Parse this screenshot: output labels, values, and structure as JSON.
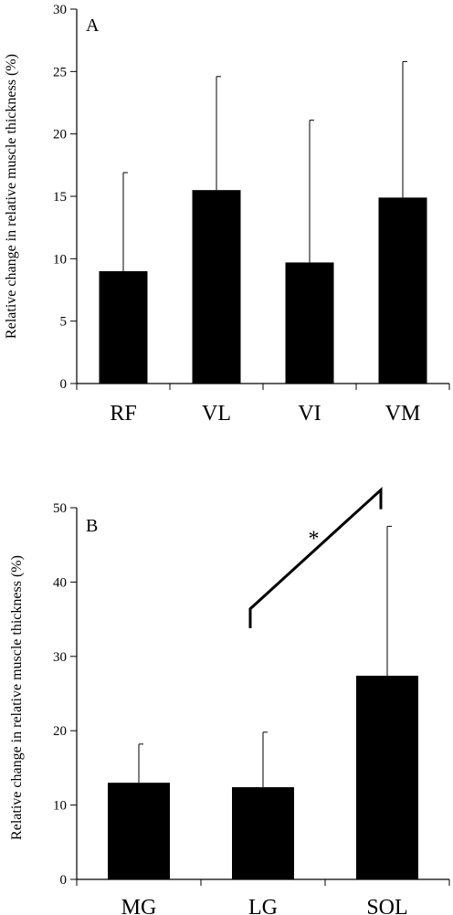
{
  "chart_data": [
    {
      "type": "bar",
      "panel_label": "A",
      "ylabel": "Relative change in relative muscle thickness (%)",
      "ylim": [
        0,
        30
      ],
      "yticks": [
        0,
        5,
        10,
        15,
        20,
        25,
        30
      ],
      "categories": [
        "RF",
        "VL",
        "VI",
        "VM"
      ],
      "values": [
        9.0,
        15.5,
        9.7,
        14.9
      ],
      "errors": [
        7.9,
        9.1,
        11.4,
        10.9
      ],
      "bar_color": "#000000",
      "grid": false
    },
    {
      "type": "bar",
      "panel_label": "B",
      "ylabel": "Relative change in relative muscle thickness (%)",
      "ylim": [
        0,
        50
      ],
      "yticks": [
        0,
        10,
        20,
        30,
        40,
        50
      ],
      "categories": [
        "MG",
        "LG",
        "SOL"
      ],
      "values": [
        13.0,
        12.4,
        27.4
      ],
      "errors": [
        5.2,
        7.4,
        20.1
      ],
      "bar_color": "#000000",
      "grid": false,
      "annotations": [
        {
          "text": "*",
          "between": [
            "LG",
            "SOL"
          ],
          "from_value": 33.8,
          "to_value": 49.8,
          "peak_start": 36.4,
          "peak_end": 52.4
        }
      ]
    }
  ]
}
